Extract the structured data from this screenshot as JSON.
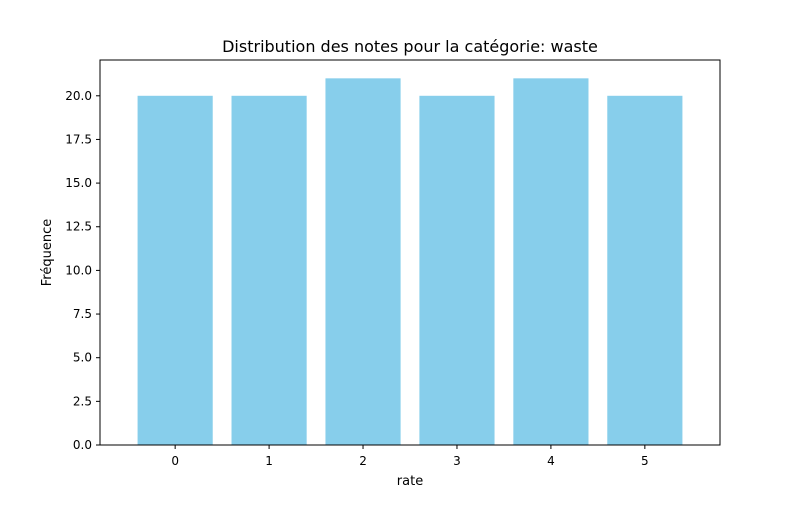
{
  "chart_data": {
    "type": "bar",
    "title": "Distribution des notes pour la catégorie: waste",
    "xlabel": "rate",
    "ylabel": "Fréquence",
    "categories": [
      "0",
      "1",
      "2",
      "3",
      "4",
      "5"
    ],
    "values": [
      20,
      20,
      21,
      20,
      21,
      20
    ],
    "ylim": [
      0,
      22.05
    ],
    "yticks": [
      "0.0",
      "2.5",
      "5.0",
      "7.5",
      "10.0",
      "12.5",
      "15.0",
      "17.5",
      "20.0"
    ],
    "bar_color": "#87CEEB",
    "grid": false,
    "legend": "none"
  }
}
